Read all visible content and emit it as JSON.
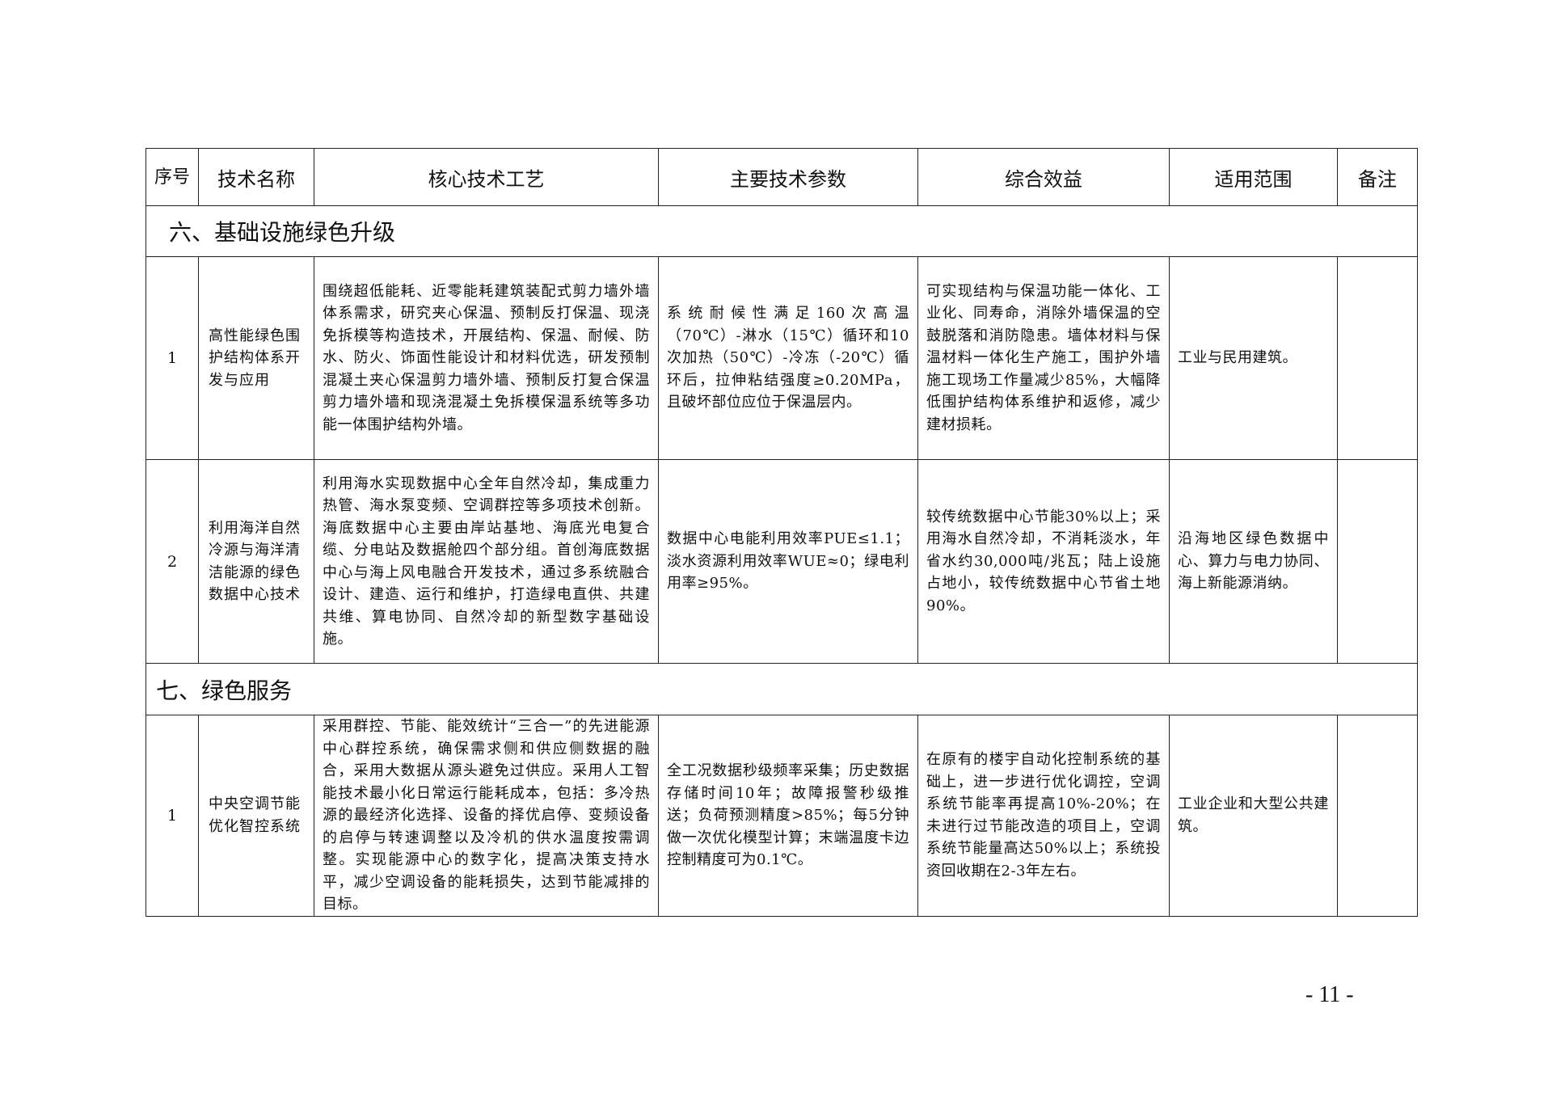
{
  "headers": {
    "seq": "序号",
    "name": "技术名称",
    "process": "核心技术工艺",
    "params": "主要技术参数",
    "benefit": "综合效益",
    "scope": "适用范围",
    "note": "备注"
  },
  "sections": [
    {
      "title": "六、基础设施绿色升级",
      "rows": [
        {
          "seq": "1",
          "name": "高性能绿色围护结构体系开发与应用",
          "process": "围绕超低能耗、近零能耗建筑装配式剪力墙外墙体系需求，研究夹心保温、预制反打保温、现浇免拆模等构造技术，开展结构、保温、耐候、防水、防火、饰面性能设计和材料优选，研发预制混凝土夹心保温剪力墙外墙、预制反打复合保温剪力墙外墙和现浇混凝土免拆模保温系统等多功能一体围护结构外墙。",
          "params": "系统耐候性满足160次高温（70℃）-淋水（15℃）循环和10次加热（50℃）-冷冻（-20℃）循环后，拉伸粘结强度≥0.20MPa，且破坏部位应位于保温层内。",
          "benefit": "可实现结构与保温功能一体化、工业化、同寿命，消除外墙保温的空鼓脱落和消防隐患。墙体材料与保温材料一体化生产施工，围护外墙施工现场工作量减少85%，大幅降低围护结构体系维护和返修，减少建材损耗。",
          "scope": "工业与民用建筑。",
          "note": ""
        },
        {
          "seq": "2",
          "name": "利用海洋自然冷源与海洋清洁能源的绿色数据中心技术",
          "process": "利用海水实现数据中心全年自然冷却，集成重力热管、海水泵变频、空调群控等多项技术创新。海底数据中心主要由岸站基地、海底光电复合缆、分电站及数据舱四个部分组。首创海底数据中心与海上风电融合开发技术，通过多系统融合设计、建造、运行和维护，打造绿电直供、共建共维、算电协同、自然冷却的新型数字基础设施。",
          "params": "数据中心电能利用效率PUE≤1.1；淡水资源利用效率WUE≈0；绿电利用率≥95%。",
          "benefit": "较传统数据中心节能30%以上；采用海水自然冷却，不消耗淡水，年省水约30,000吨/兆瓦；陆上设施占地小，较传统数据中心节省土地90%。",
          "scope": "沿海地区绿色数据中心、算力与电力协同、海上新能源消纳。",
          "note": ""
        }
      ]
    },
    {
      "title": "七、绿色服务",
      "rows": [
        {
          "seq": "1",
          "name": "中央空调节能优化智控系统",
          "process": "采用群控、节能、能效统计“三合一”的先进能源中心群控系统，确保需求侧和供应侧数据的融合，采用大数据从源头避免过供应。采用人工智能技术最小化日常运行能耗成本，包括：多冷热源的最经济化选择、设备的择优启停、变频设备的启停与转速调整以及冷机的供水温度按需调整。实现能源中心的数字化，提高决策支持水平，减少空调设备的能耗损失，达到节能减排的目标。",
          "params": "全工况数据秒级频率采集；历史数据存储时间10年；故障报警秒级推送；负荷预测精度>85%；每5分钟做一次优化模型计算；末端温度卡边控制精度可为0.1℃。",
          "benefit": "在原有的楼宇自动化控制系统的基础上，进一步进行优化调控，空调系统节能率再提高10%-20%；在未进行过节能改造的项目上，空调系统节能量高达50%以上；系统投资回收期在2-3年左右。",
          "scope": "工业企业和大型公共建筑。",
          "note": ""
        }
      ]
    }
  ],
  "page_number": "- 11 -"
}
